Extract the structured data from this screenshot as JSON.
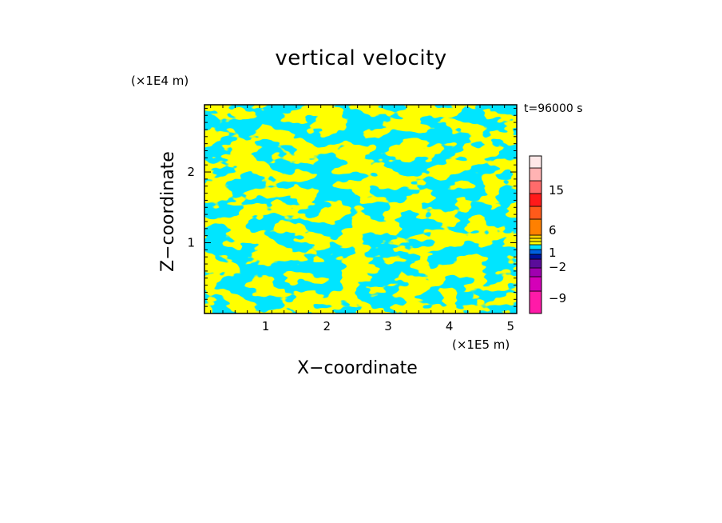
{
  "chart_data": {
    "type": "heatmap",
    "title": "vertical velocity",
    "xlabel": "X−coordinate",
    "ylabel": "Z−coordinate",
    "x_unit": "(×1E5 m)",
    "z_unit": "(×1E4 m)",
    "time_label": "t=96000 s",
    "xlim": [
      0,
      5.1
    ],
    "ylim": [
      0,
      2.95
    ],
    "x_ticks": [
      1,
      2,
      3,
      4,
      5
    ],
    "y_ticks": [
      1,
      2
    ],
    "field_colors": {
      "positive": "#ffff00",
      "negative": "#00e5ff"
    },
    "colorbar": {
      "tick_labels": [
        "15",
        "6",
        "1",
        "−2",
        "−9"
      ],
      "levels": [
        {
          "color": "#ff1aa8"
        },
        {
          "color": "#d400b8"
        },
        {
          "color": "#a000b0"
        },
        {
          "color": "#5a0c9a"
        },
        {
          "color": "#00139e"
        },
        {
          "color": "#0060e0"
        },
        {
          "color": "#00e5ff"
        },
        {
          "color": "#ffff00"
        },
        {
          "color": "#ffea00"
        },
        {
          "color": "#ffd000"
        },
        {
          "color": "#ff8000"
        },
        {
          "color": "#ff5a1a"
        },
        {
          "color": "#ff1a1a"
        },
        {
          "color": "#ff6b6b"
        },
        {
          "color": "#ffb3b3"
        },
        {
          "color": "#ffe8e8"
        }
      ]
    }
  }
}
